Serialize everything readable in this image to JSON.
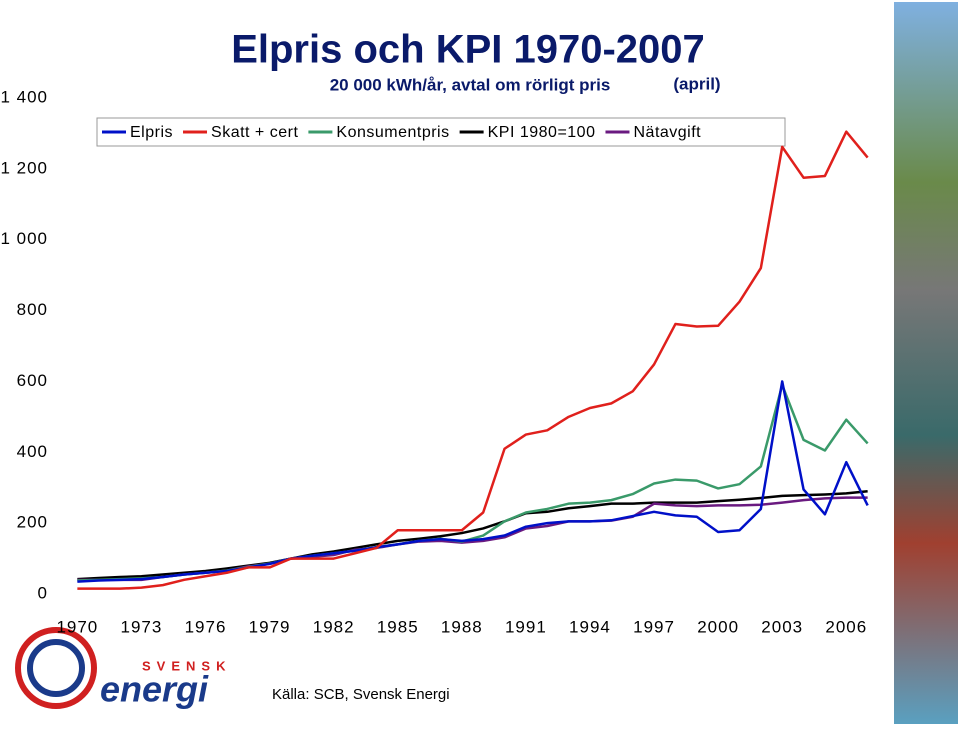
{
  "chart_data": {
    "type": "line",
    "title": "Elpris och KPI 1970-2007",
    "subtitle": "20 000 kWh/år, avtal om rörligt pris",
    "annotation": "(april)",
    "source": "Källa: SCB, Svensk Energi",
    "brand": [
      "SVENSK",
      "energi"
    ],
    "x": [
      1970,
      1971,
      1972,
      1973,
      1974,
      1975,
      1976,
      1977,
      1978,
      1979,
      1980,
      1981,
      1982,
      1983,
      1984,
      1985,
      1986,
      1987,
      1988,
      1989,
      1990,
      1991,
      1992,
      1993,
      1994,
      1995,
      1996,
      1997,
      1998,
      1999,
      2000,
      2001,
      2002,
      2003,
      2004,
      2005,
      2006,
      2007
    ],
    "xlim": [
      1969,
      2008
    ],
    "xticks": [
      1970,
      1973,
      1976,
      1979,
      1982,
      1985,
      1988,
      1991,
      1994,
      1997,
      2000,
      2003,
      2006
    ],
    "ylim": [
      0,
      1400
    ],
    "yticks": [
      0,
      200,
      400,
      600,
      800,
      {
        "value": 1000,
        "label": "1 000"
      },
      {
        "value": 1200,
        "label": "1 200"
      },
      {
        "value": 1400,
        "label": "1 400"
      }
    ],
    "grid": false,
    "legend": "top",
    "series": [
      {
        "name": "Elpris",
        "color": "#0010c8",
        "values": [
          35,
          38,
          40,
          42,
          48,
          55,
          60,
          65,
          75,
          85,
          100,
          108,
          115,
          122,
          132,
          140,
          150,
          155,
          150,
          155,
          165,
          190,
          200,
          205,
          205,
          208,
          220,
          232,
          222,
          218,
          175,
          180,
          240,
          600,
          295,
          225,
          372,
          250
        ]
      },
      {
        "name": "Skatt + cert",
        "color": "#e0201c",
        "values": [
          15,
          15,
          15,
          18,
          25,
          40,
          50,
          60,
          75,
          75,
          100,
          100,
          100,
          115,
          130,
          180,
          180,
          180,
          180,
          230,
          410,
          450,
          462,
          500,
          525,
          538,
          572,
          648,
          762,
          755,
          757,
          825,
          920,
          1262,
          1175,
          1180,
          1305,
          1232
        ]
      },
      {
        "name": "Konsumentpris",
        "color": "#3a9a6a",
        "values": [
          38,
          40,
          42,
          44,
          48,
          55,
          60,
          66,
          76,
          86,
          100,
          108,
          115,
          122,
          132,
          140,
          150,
          156,
          148,
          165,
          205,
          230,
          240,
          255,
          258,
          265,
          282,
          312,
          323,
          320,
          298,
          310,
          360,
          590,
          435,
          405,
          492,
          425
        ]
      },
      {
        "name": "KPI 1980=100",
        "color": "#000000",
        "values": [
          42,
          45,
          48,
          50,
          55,
          60,
          65,
          72,
          80,
          88,
          100,
          112,
          120,
          130,
          140,
          150,
          156,
          163,
          172,
          185,
          205,
          228,
          232,
          242,
          248,
          255,
          255,
          258,
          258,
          258,
          262,
          266,
          271,
          277,
          279,
          281,
          284,
          290
        ]
      },
      {
        "name": "Nätavgift",
        "color": "#6a1a80",
        "values": [
          40,
          40,
          40,
          40,
          48,
          55,
          60,
          66,
          78,
          85,
          100,
          105,
          110,
          125,
          130,
          140,
          148,
          150,
          145,
          150,
          160,
          185,
          192,
          205,
          205,
          207,
          218,
          255,
          250,
          248,
          250,
          250,
          252,
          258,
          265,
          270,
          272,
          272
        ]
      }
    ]
  }
}
